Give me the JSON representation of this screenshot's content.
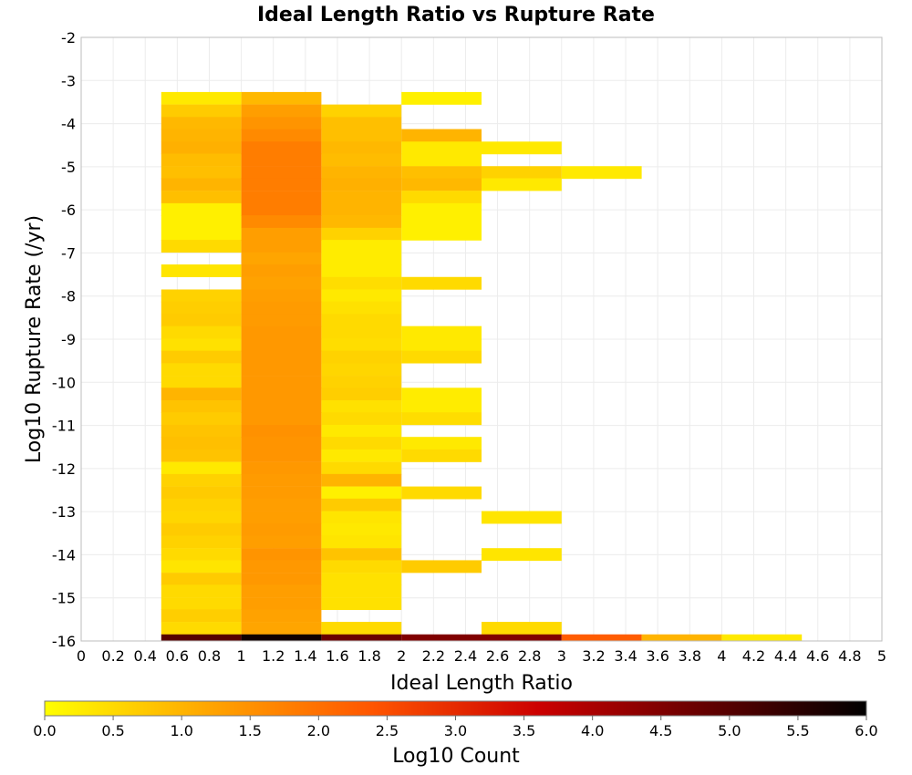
{
  "chart_data": {
    "type": "heatmap",
    "title": "Ideal Length Ratio vs Rupture Rate",
    "xlabel": "Ideal Length Ratio",
    "ylabel": "Log10 Rupture Rate (/yr)",
    "xlim": [
      0,
      5
    ],
    "ylim": [
      -16,
      -2
    ],
    "x_ticks": [
      "0",
      "0.2",
      "0.4",
      "0.6",
      "0.8",
      "1",
      "1.2",
      "1.4",
      "1.6",
      "1.8",
      "2",
      "2.2",
      "2.4",
      "2.6",
      "2.8",
      "3",
      "3.2",
      "3.4",
      "3.6",
      "3.8",
      "4",
      "4.2",
      "4.4",
      "4.6",
      "4.8",
      "5"
    ],
    "y_ticks": [
      "-2",
      "-3",
      "-4",
      "-5",
      "-6",
      "-7",
      "-8",
      "-9",
      "-10",
      "-11",
      "-12",
      "-13",
      "-14",
      "-15",
      "-16"
    ],
    "colorbar": {
      "label": "Log10 Count",
      "min": 0,
      "max": 6,
      "ticks": [
        "0.0",
        "0.5",
        "1.0",
        "1.5",
        "2.0",
        "2.5",
        "3.0",
        "3.5",
        "4.0",
        "4.5",
        "5.0",
        "5.5",
        "6.0"
      ],
      "colors": [
        "#ffff00",
        "#ffa500",
        "#ff5500",
        "#cc0000",
        "#660000",
        "#000000"
      ]
    },
    "bin_width_x": 0.5,
    "bin_height_y": 0.286,
    "series": [
      {
        "x0": 0.5,
        "cells": [
          [
            -3.41,
            0.3
          ],
          [
            -3.7,
            0.7
          ],
          [
            -3.99,
            0.95
          ],
          [
            -4.27,
            1.0
          ],
          [
            -4.56,
            1.05
          ],
          [
            -4.84,
            0.9
          ],
          [
            -5.13,
            0.85
          ],
          [
            -5.41,
            1.0
          ],
          [
            -5.7,
            0.85
          ],
          [
            -5.99,
            0.2
          ],
          [
            -6.27,
            0.2
          ],
          [
            -6.56,
            0.2
          ],
          [
            -6.84,
            0.5
          ],
          [
            -7.41,
            0.35
          ],
          [
            -7.99,
            0.6
          ],
          [
            -8.27,
            0.65
          ],
          [
            -8.56,
            0.7
          ],
          [
            -8.84,
            0.5
          ],
          [
            -9.13,
            0.4
          ],
          [
            -9.41,
            0.7
          ],
          [
            -9.7,
            0.5
          ],
          [
            -9.99,
            0.5
          ],
          [
            -10.27,
            1.0
          ],
          [
            -10.56,
            0.8
          ],
          [
            -10.84,
            0.7
          ],
          [
            -11.13,
            0.8
          ],
          [
            -11.41,
            0.85
          ],
          [
            -11.7,
            0.8
          ],
          [
            -11.99,
            0.3
          ],
          [
            -12.27,
            0.6
          ],
          [
            -12.56,
            0.7
          ],
          [
            -12.84,
            0.6
          ],
          [
            -13.13,
            0.55
          ],
          [
            -13.41,
            0.7
          ],
          [
            -13.7,
            0.6
          ],
          [
            -13.99,
            0.5
          ],
          [
            -14.27,
            0.35
          ],
          [
            -14.56,
            0.7
          ],
          [
            -14.84,
            0.5
          ],
          [
            -15.13,
            0.5
          ],
          [
            -15.41,
            0.65
          ],
          [
            -15.7,
            0.5
          ],
          [
            -15.99,
            5.0
          ]
        ]
      },
      {
        "x0": 1.0,
        "cells": [
          [
            -3.41,
            0.95
          ],
          [
            -3.7,
            1.3
          ],
          [
            -3.99,
            1.45
          ],
          [
            -4.27,
            1.6
          ],
          [
            -4.56,
            1.8
          ],
          [
            -4.84,
            1.8
          ],
          [
            -5.13,
            1.8
          ],
          [
            -5.41,
            1.8
          ],
          [
            -5.7,
            1.8
          ],
          [
            -5.99,
            1.8
          ],
          [
            -6.27,
            1.6
          ],
          [
            -6.56,
            1.3
          ],
          [
            -6.84,
            1.3
          ],
          [
            -7.13,
            1.2
          ],
          [
            -7.41,
            1.3
          ],
          [
            -7.7,
            1.25
          ],
          [
            -7.99,
            1.3
          ],
          [
            -8.27,
            1.35
          ],
          [
            -8.56,
            1.35
          ],
          [
            -8.84,
            1.4
          ],
          [
            -9.13,
            1.4
          ],
          [
            -9.41,
            1.4
          ],
          [
            -9.7,
            1.4
          ],
          [
            -9.99,
            1.4
          ],
          [
            -10.27,
            1.4
          ],
          [
            -10.56,
            1.4
          ],
          [
            -10.84,
            1.4
          ],
          [
            -11.13,
            1.5
          ],
          [
            -11.41,
            1.45
          ],
          [
            -11.7,
            1.45
          ],
          [
            -11.99,
            1.4
          ],
          [
            -12.27,
            1.35
          ],
          [
            -12.56,
            1.35
          ],
          [
            -12.84,
            1.3
          ],
          [
            -13.13,
            1.3
          ],
          [
            -13.41,
            1.35
          ],
          [
            -13.7,
            1.3
          ],
          [
            -13.99,
            1.45
          ],
          [
            -14.27,
            1.4
          ],
          [
            -14.56,
            1.4
          ],
          [
            -14.84,
            1.3
          ],
          [
            -15.13,
            1.3
          ],
          [
            -15.41,
            1.25
          ],
          [
            -15.7,
            1.2
          ],
          [
            -15.99,
            5.8
          ]
        ]
      },
      {
        "x0": 1.5,
        "cells": [
          [
            -3.7,
            0.6
          ],
          [
            -3.99,
            0.85
          ],
          [
            -4.27,
            0.85
          ],
          [
            -4.56,
            0.95
          ],
          [
            -4.84,
            0.9
          ],
          [
            -5.13,
            1.0
          ],
          [
            -5.41,
            1.05
          ],
          [
            -5.7,
            1.0
          ],
          [
            -5.99,
            1.0
          ],
          [
            -6.27,
            0.95
          ],
          [
            -6.56,
            0.6
          ],
          [
            -6.84,
            0.25
          ],
          [
            -7.13,
            0.25
          ],
          [
            -7.41,
            0.25
          ],
          [
            -7.7,
            0.45
          ],
          [
            -7.99,
            0.3
          ],
          [
            -8.27,
            0.4
          ],
          [
            -8.56,
            0.5
          ],
          [
            -8.84,
            0.5
          ],
          [
            -9.13,
            0.45
          ],
          [
            -9.41,
            0.6
          ],
          [
            -9.7,
            0.55
          ],
          [
            -9.99,
            0.6
          ],
          [
            -10.27,
            0.65
          ],
          [
            -10.56,
            0.4
          ],
          [
            -10.84,
            0.5
          ],
          [
            -11.13,
            0.3
          ],
          [
            -11.41,
            0.5
          ],
          [
            -11.7,
            0.3
          ],
          [
            -11.99,
            0.5
          ],
          [
            -12.27,
            1.0
          ],
          [
            -12.56,
            0.2
          ],
          [
            -12.84,
            0.7
          ],
          [
            -13.13,
            0.35
          ],
          [
            -13.41,
            0.3
          ],
          [
            -13.7,
            0.35
          ],
          [
            -13.99,
            0.8
          ],
          [
            -14.27,
            0.5
          ],
          [
            -14.56,
            0.4
          ],
          [
            -14.84,
            0.4
          ],
          [
            -15.13,
            0.4
          ],
          [
            -15.7,
            0.5
          ],
          [
            -15.99,
            4.75
          ]
        ]
      },
      {
        "x0": 2.0,
        "cells": [
          [
            -3.41,
            0.2
          ],
          [
            -4.27,
            1.0
          ],
          [
            -4.56,
            0.3
          ],
          [
            -4.84,
            0.3
          ],
          [
            -5.13,
            0.85
          ],
          [
            -5.41,
            0.95
          ],
          [
            -5.7,
            0.5
          ],
          [
            -5.99,
            0.2
          ],
          [
            -6.27,
            0.2
          ],
          [
            -6.56,
            0.2
          ],
          [
            -7.7,
            0.5
          ],
          [
            -8.84,
            0.3
          ],
          [
            -9.13,
            0.3
          ],
          [
            -9.41,
            0.5
          ],
          [
            -10.27,
            0.25
          ],
          [
            -10.56,
            0.25
          ],
          [
            -10.84,
            0.45
          ],
          [
            -11.41,
            0.3
          ],
          [
            -11.7,
            0.5
          ],
          [
            -12.56,
            0.5
          ],
          [
            -14.27,
            0.7
          ],
          [
            -15.99,
            4.5
          ]
        ]
      },
      {
        "x0": 2.5,
        "cells": [
          [
            -4.56,
            0.3
          ],
          [
            -5.13,
            0.6
          ],
          [
            -5.41,
            0.3
          ],
          [
            -13.13,
            0.35
          ],
          [
            -13.99,
            0.35
          ],
          [
            -15.7,
            0.5
          ],
          [
            -15.99,
            4.5
          ]
        ]
      },
      {
        "x0": 3.0,
        "cells": [
          [
            -5.13,
            0.3
          ],
          [
            -15.99,
            2.3
          ]
        ]
      },
      {
        "x0": 3.5,
        "cells": [
          [
            -15.99,
            1.0
          ]
        ]
      },
      {
        "x0": 4.0,
        "cells": [
          [
            -15.99,
            0.3
          ]
        ]
      }
    ]
  }
}
